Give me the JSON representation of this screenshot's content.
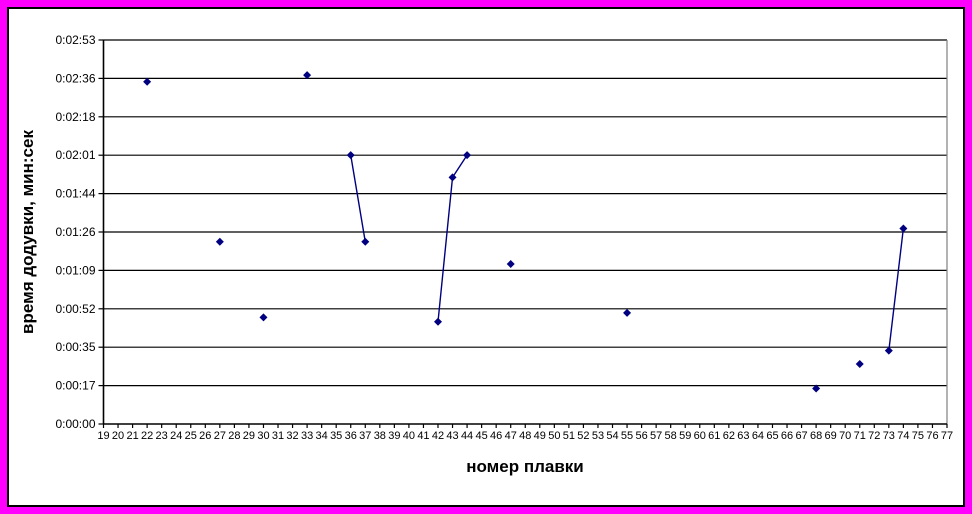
{
  "frame": {
    "outer_border_color": "#FF00FF",
    "inner_border_color": "#000000",
    "background": "#FFFFFF"
  },
  "chart_data": {
    "type": "line",
    "title": "",
    "xlabel": "номер плавки",
    "ylabel": "время додувки, мин:сек",
    "grid": true,
    "legend": "none",
    "x_range": [
      19,
      77
    ],
    "y_axis_max_seconds": 172.8,
    "y_ticks": [
      "0:00:00",
      "0:00:17",
      "0:00:35",
      "0:00:52",
      "0:01:09",
      "0:01:26",
      "0:01:44",
      "0:02:01",
      "0:02:18",
      "0:02:36",
      "0:02:53"
    ],
    "x_ticks": [
      19,
      20,
      21,
      22,
      23,
      24,
      25,
      26,
      27,
      28,
      29,
      30,
      31,
      32,
      33,
      34,
      35,
      36,
      37,
      38,
      39,
      40,
      41,
      42,
      43,
      44,
      45,
      46,
      47,
      48,
      49,
      50,
      51,
      52,
      53,
      54,
      55,
      56,
      57,
      58,
      59,
      60,
      61,
      62,
      63,
      64,
      65,
      66,
      67,
      68,
      69,
      70,
      71,
      72,
      73,
      74,
      75,
      76,
      77
    ],
    "marker": {
      "shape": "diamond",
      "color": "#000080",
      "size": 8
    },
    "line_color": "#000080",
    "gridline_color": "#000000",
    "axis_color": "#000000",
    "plot_border_color": "#808080",
    "points": [
      {
        "x": 22,
        "seconds": 154,
        "time": "0:02:34"
      },
      {
        "x": 27,
        "seconds": 82,
        "time": "0:01:22"
      },
      {
        "x": 30,
        "seconds": 48,
        "time": "0:00:48"
      },
      {
        "x": 33,
        "seconds": 157,
        "time": "0:02:37"
      },
      {
        "x": 36,
        "seconds": 121,
        "time": "0:02:01"
      },
      {
        "x": 37,
        "seconds": 82,
        "time": "0:01:22"
      },
      {
        "x": 42,
        "seconds": 46,
        "time": "0:00:46"
      },
      {
        "x": 43,
        "seconds": 111,
        "time": "0:01:51"
      },
      {
        "x": 44,
        "seconds": 121,
        "time": "0:02:01"
      },
      {
        "x": 47,
        "seconds": 72,
        "time": "0:01:12"
      },
      {
        "x": 55,
        "seconds": 50,
        "time": "0:00:50"
      },
      {
        "x": 68,
        "seconds": 16,
        "time": "0:00:16"
      },
      {
        "x": 71,
        "seconds": 27,
        "time": "0:00:27"
      },
      {
        "x": 73,
        "seconds": 33,
        "time": "0:00:33"
      },
      {
        "x": 74,
        "seconds": 88,
        "time": "0:01:28"
      }
    ],
    "connected_runs": [
      [
        36,
        37
      ],
      [
        42,
        43,
        44
      ],
      [
        73,
        74
      ]
    ]
  }
}
